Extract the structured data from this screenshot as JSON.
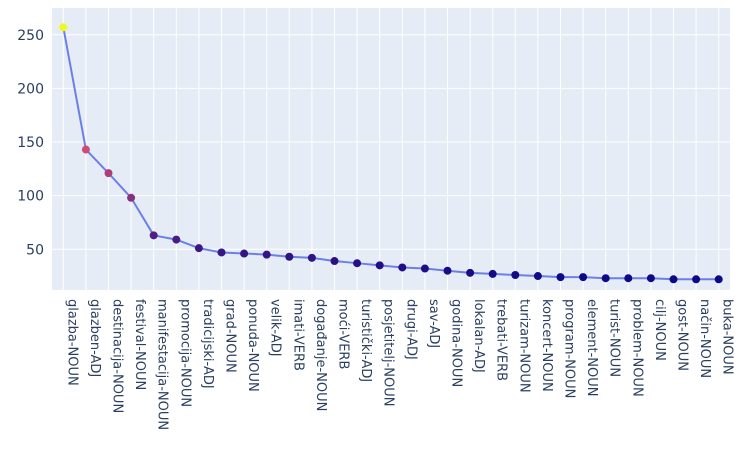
{
  "chart_data": {
    "type": "line",
    "title": "",
    "xlabel": "",
    "ylabel": "",
    "categories": [
      "glazba-NOUN",
      "glazben-ADJ",
      "destinacija-NOUN",
      "festival-NOUN",
      "manifestacija-NOUN",
      "promocija-NOUN",
      "tradicijski-ADJ",
      "grad-NOUN",
      "ponuda-NOUN",
      "velik-ADJ",
      "imati-VERB",
      "događanje-NOUN",
      "moći-VERB",
      "turistički-ADJ",
      "posjetitelj-NOUN",
      "drugi-ADJ",
      "sav-ADJ",
      "godina-NOUN",
      "lokalan-ADJ",
      "trebati-VERB",
      "turizam-NOUN",
      "koncert-NOUN",
      "program-NOUN",
      "element-NOUN",
      "turist-NOUN",
      "problem-NOUN",
      "cilj-NOUN",
      "gost-NOUN",
      "način-NOUN",
      "buka-NOUN"
    ],
    "values": [
      257,
      143,
      121,
      98,
      63,
      59,
      51,
      47,
      46,
      45,
      43,
      42,
      39,
      37,
      35,
      33,
      32,
      30,
      28,
      27,
      26,
      25,
      24,
      24,
      23,
      23,
      23,
      22,
      22,
      22
    ],
    "ylim": [
      12,
      275
    ],
    "yticks": [
      "50",
      "100",
      "150",
      "200",
      "250"
    ],
    "grid": true,
    "legend": "none",
    "colors": {
      "plot_background": "#e5ecf6",
      "grid": "#ffffff",
      "line": "#6c7fe8",
      "marker_low": "#0d0887",
      "marker_mid": "#cc4778",
      "marker_high": "#f0f921",
      "text": "#2a3f5f"
    }
  }
}
